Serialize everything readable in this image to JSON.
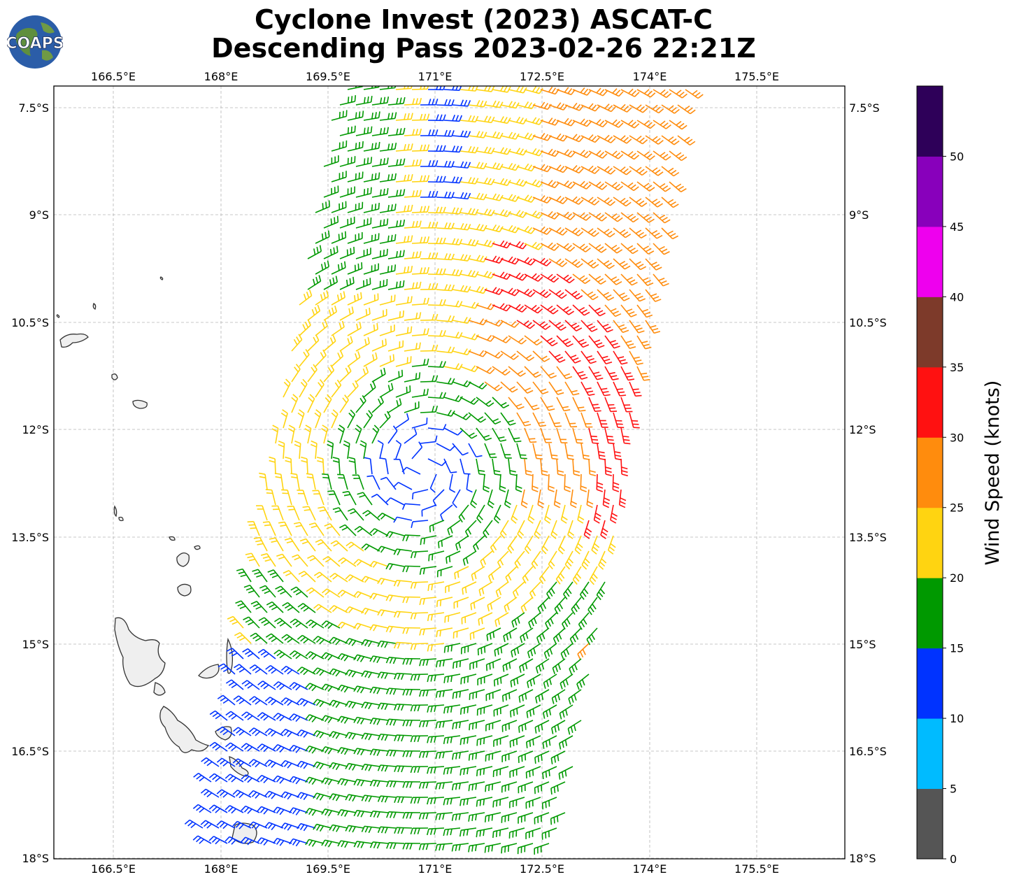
{
  "title": {
    "line1": "Cyclone Invest (2023) ASCAT-C",
    "line2": "Descending Pass 2023-02-26 22:21Z"
  },
  "logo_text": "COAPS",
  "lon_ticks": [
    "166.5°E",
    "168°E",
    "169.5°E",
    "171°E",
    "172.5°E",
    "174°E",
    "175.5°E"
  ],
  "lat_ticks": [
    "7.5°S",
    "9°S",
    "10.5°S",
    "12°S",
    "13.5°S",
    "15°S",
    "16.5°S",
    "18°S"
  ],
  "colorbar": {
    "label": "Wind Speed (knots)",
    "ticks": [
      "0",
      "5",
      "10",
      "15",
      "20",
      "25",
      "30",
      "35",
      "40",
      "45",
      "50"
    ],
    "colors": [
      "#555555",
      "#00bbff",
      "#0033ff",
      "#009900",
      "#ffd411",
      "#ff8c0d",
      "#ff1111",
      "#7d3a2a",
      "#ee00ee",
      "#8800bb",
      "#2e0059"
    ]
  },
  "wind_colors": {
    "blue": "#0033ff",
    "green": "#009900",
    "yellow": "#ffd411",
    "orange": "#ff8c0d",
    "red": "#ff1111"
  }
}
